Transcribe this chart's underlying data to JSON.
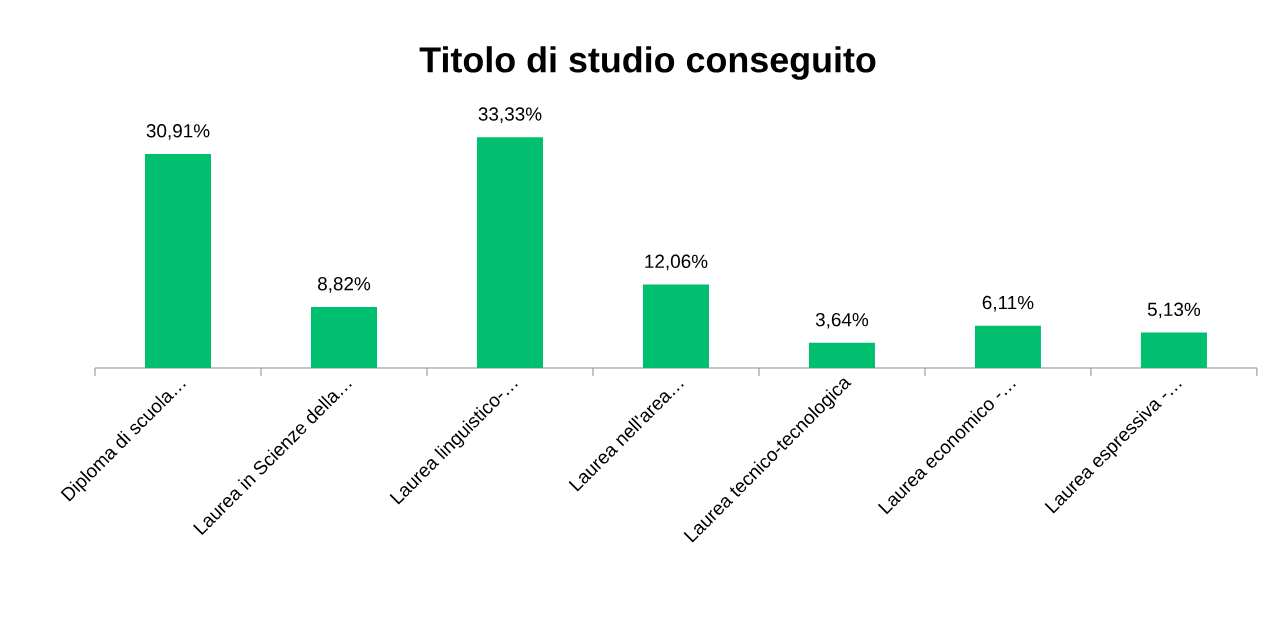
{
  "chart_data": {
    "type": "bar",
    "title": "Titolo di studio conseguito",
    "categories": [
      "Diploma di scuola…",
      "Laurea in Scienze della…",
      "Laurea linguistico-…",
      "Laurea nell'area…",
      "Laurea tecnico-tecnologica",
      "Laurea economico -…",
      "Laurea espressiva -…"
    ],
    "values": [
      30.91,
      8.82,
      33.33,
      12.06,
      3.64,
      6.11,
      5.13
    ],
    "value_labels": [
      "30,91%",
      "8,82%",
      "33,33%",
      "12,06%",
      "3,64%",
      "6,11%",
      "5,13%"
    ],
    "color": "#00bf6f"
  }
}
